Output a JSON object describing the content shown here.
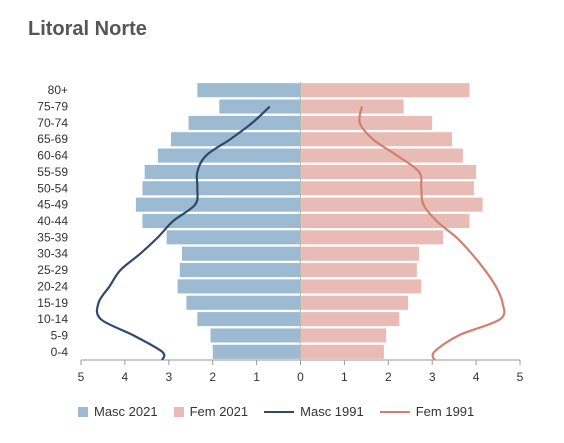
{
  "chart_data": {
    "type": "bar",
    "title": "Litoral Norte",
    "categories": [
      "80+",
      "75-79",
      "70-74",
      "65-69",
      "60-64",
      "55-59",
      "50-54",
      "45-49",
      "40-44",
      "35-39",
      "30-34",
      "25-29",
      "20-24",
      "15-19",
      "10-14",
      "5-9",
      "0-4"
    ],
    "xlim": [
      -5,
      5
    ],
    "x_ticks": [
      -5,
      -4,
      -3,
      -2,
      -1,
      0,
      1,
      2,
      3,
      4,
      5
    ],
    "x_tick_labels": [
      "5",
      "4",
      "3",
      "2",
      "1",
      "0",
      "1",
      "2",
      "3",
      "4",
      "5"
    ],
    "grid": false,
    "legend_position": "bottom",
    "series": [
      {
        "name": "Masc 2021",
        "kind": "bar",
        "side": "left",
        "color": "#9dbad3",
        "values": [
          2.35,
          1.85,
          2.55,
          2.95,
          3.25,
          3.55,
          3.6,
          3.75,
          3.6,
          3.05,
          2.7,
          2.75,
          2.8,
          2.6,
          2.35,
          2.05,
          2.0
        ]
      },
      {
        "name": "Fem 2021",
        "kind": "bar",
        "side": "right",
        "color": "#e8bcb5",
        "values": [
          3.85,
          2.35,
          3.0,
          3.45,
          3.7,
          4.0,
          3.95,
          4.15,
          3.85,
          3.25,
          2.7,
          2.65,
          2.75,
          2.45,
          2.25,
          1.95,
          1.9
        ]
      },
      {
        "name": "Masc 1991",
        "kind": "line",
        "side": "left",
        "color": "#2e4a6b",
        "values": [
          null,
          0.7,
          1.1,
          1.6,
          2.15,
          2.35,
          2.35,
          2.4,
          2.9,
          3.25,
          3.65,
          4.1,
          4.35,
          4.6,
          4.55,
          3.8,
          3.15
        ]
      },
      {
        "name": "Fem 1991",
        "kind": "line",
        "side": "right",
        "color": "#d27f72",
        "values": [
          null,
          1.4,
          1.35,
          1.65,
          2.2,
          2.7,
          2.75,
          2.8,
          3.1,
          3.55,
          3.9,
          4.2,
          4.45,
          4.6,
          4.55,
          3.6,
          3.05
        ]
      }
    ]
  }
}
